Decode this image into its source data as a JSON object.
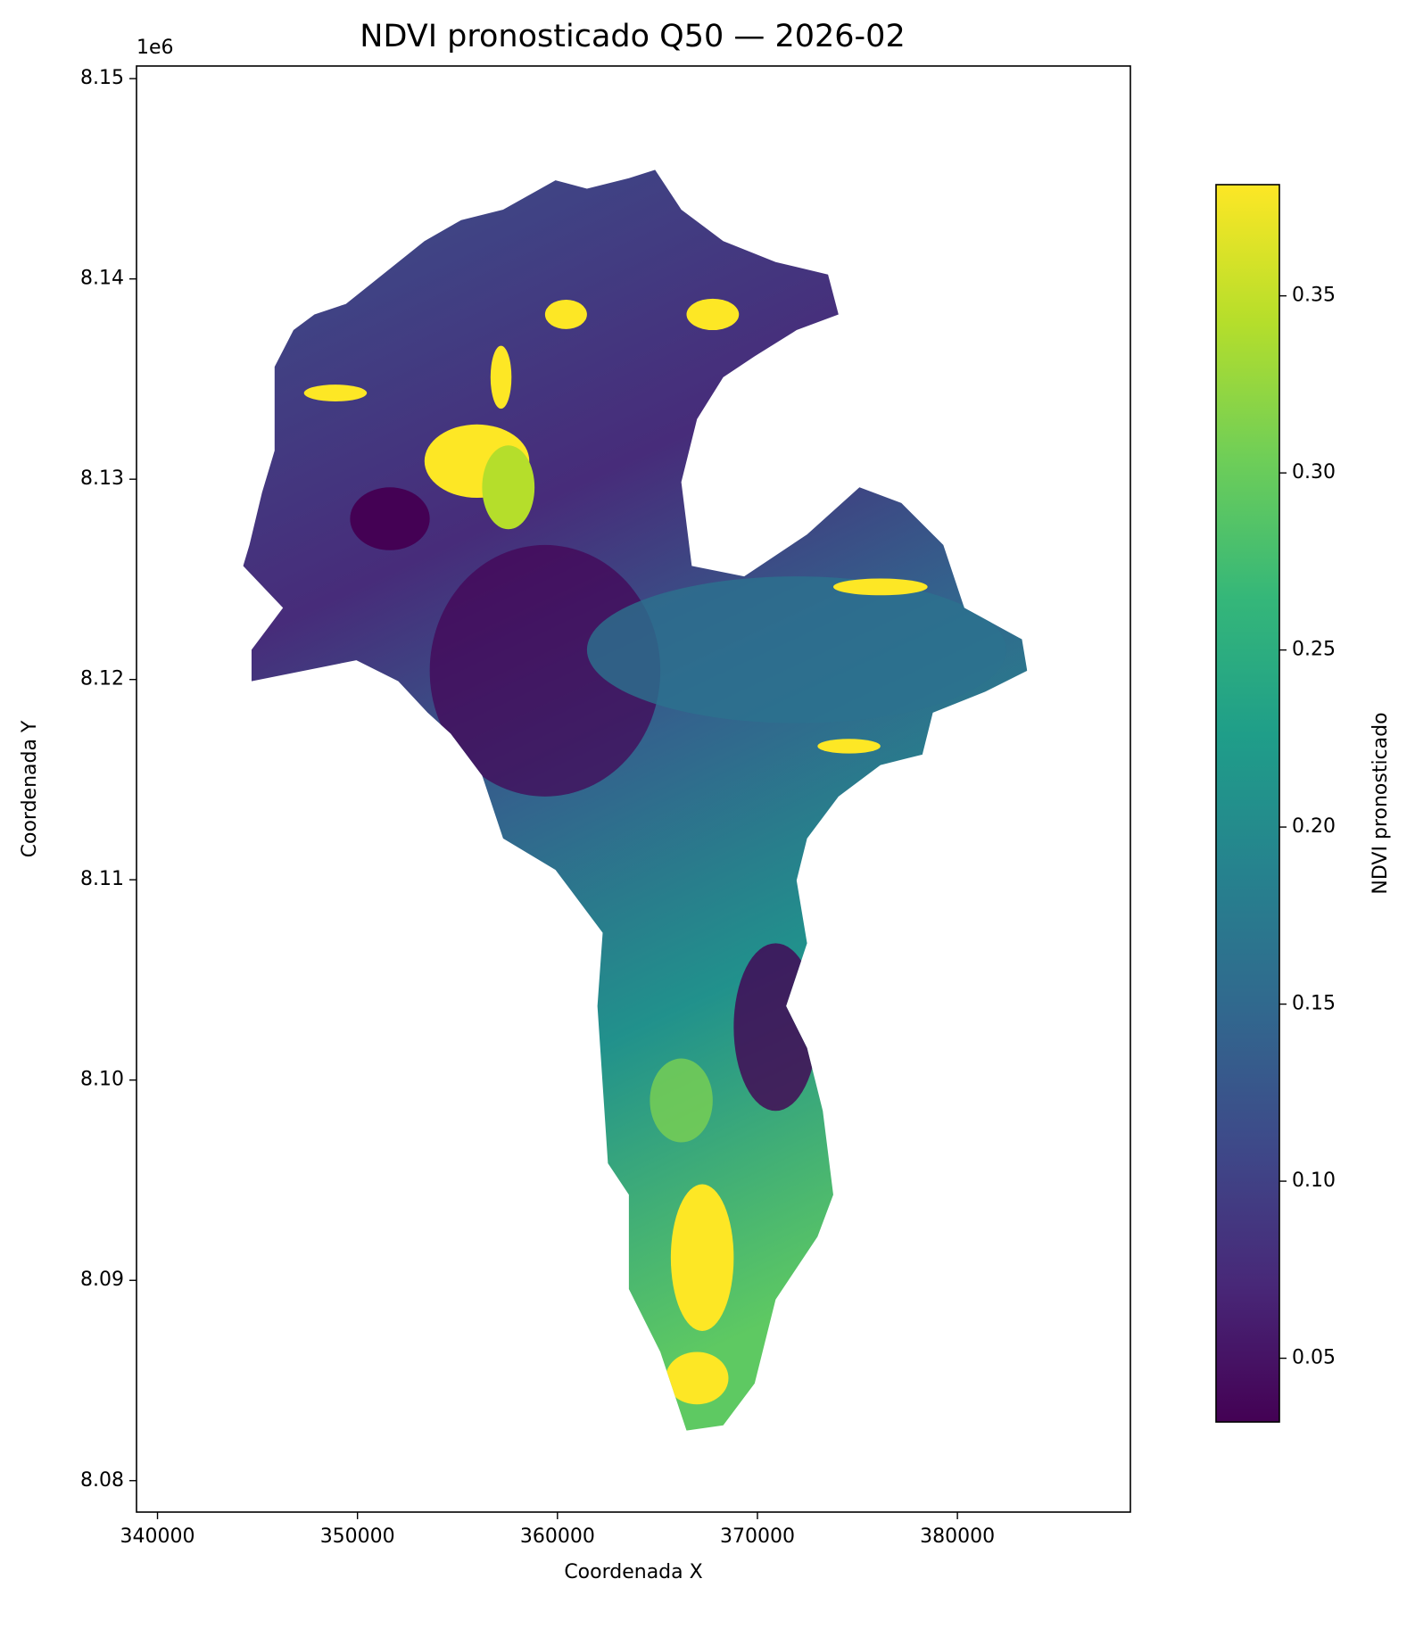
{
  "chart_data": {
    "type": "raster",
    "title": "NDVI pronosticado Q50 — 2026-02",
    "xlabel": "Coordenada X",
    "ylabel": "Coordenada Y",
    "y_offset_text": "1e6",
    "xlim": [
      338950,
      388650
    ],
    "xticks": [
      340000,
      350000,
      360000,
      370000,
      380000
    ],
    "ylim": [
      8.07843,
      8.15063
    ],
    "yticks": [
      8.08,
      8.09,
      {
        "value": 8.1,
        "label": "8.10"
      },
      8.11,
      8.12,
      8.13,
      8.14,
      8.15
    ],
    "colormap": "viridis",
    "colorbar_label": "NDVI pronosticado",
    "clim": [
      0.032,
      0.3814
    ],
    "cticks": [
      0.05,
      {
        "value": 0.1,
        "label": "0.10"
      },
      0.15,
      {
        "value": 0.2,
        "label": "0.20"
      },
      0.25,
      {
        "value": 0.3,
        "label": "0.30"
      },
      0.35
    ]
  }
}
